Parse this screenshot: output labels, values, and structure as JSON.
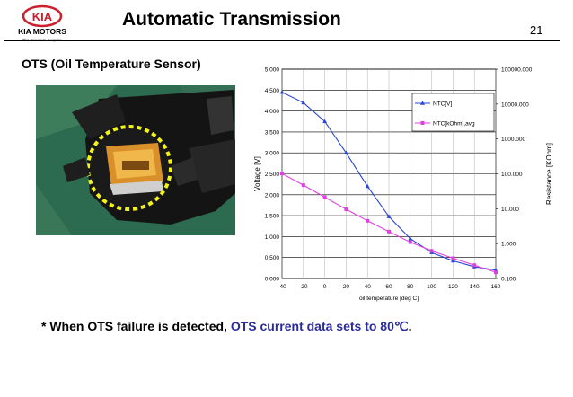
{
  "header": {
    "logo_text": "KIA",
    "brand": "KIA MOTORS",
    "tagline": "The Power to Surprise",
    "title": "Automatic Transmission",
    "page_number": "21"
  },
  "section": {
    "subtitle": "OTS (Oil Temperature Sensor)"
  },
  "note": {
    "prefix": "* When OTS failure is detected, ",
    "highlight": "OTS current data sets to 80℃",
    "suffix": "."
  },
  "chart_data": {
    "type": "line",
    "xlabel": "oil temperature [deg C]",
    "ylabel": "Voltage [V]",
    "y2label": "Resistance [KOhm]",
    "x": [
      -40,
      -20,
      0,
      20,
      40,
      60,
      80,
      100,
      120,
      140,
      160
    ],
    "xlim": [
      -40,
      160
    ],
    "ylim": [
      0,
      5
    ],
    "y2lim": [
      0.1,
      100000
    ],
    "y2scale": "log",
    "x_ticks": [
      "-40",
      "-20",
      "0",
      "20",
      "40",
      "60",
      "80",
      "100",
      "120",
      "140",
      "160"
    ],
    "y_ticks": [
      "0.000",
      "0.500",
      "1.000",
      "1.500",
      "2.000",
      "2.500",
      "3.000",
      "3.500",
      "4.000",
      "4.500",
      "5.000"
    ],
    "y2_ticks": [
      "0.100",
      "1.000",
      "10.000",
      "100.000",
      "1000.000",
      "10000.000",
      "100000.000"
    ],
    "grid": true,
    "legend_position": "top-right",
    "series": [
      {
        "name": "NTC[V]",
        "axis": "left",
        "color": "#2a44d4",
        "values": [
          4.45,
          4.2,
          3.75,
          3.0,
          2.2,
          1.48,
          0.95,
          0.62,
          0.42,
          0.28,
          0.2
        ]
      },
      {
        "name": "NTC[kOhm],avg",
        "axis": "right",
        "color": "#e040e0",
        "values": [
          101.8,
          47.3,
          21.4,
          9.6,
          4.5,
          2.2,
          1.1,
          0.62,
          0.38,
          0.24,
          0.15
        ]
      }
    ]
  }
}
